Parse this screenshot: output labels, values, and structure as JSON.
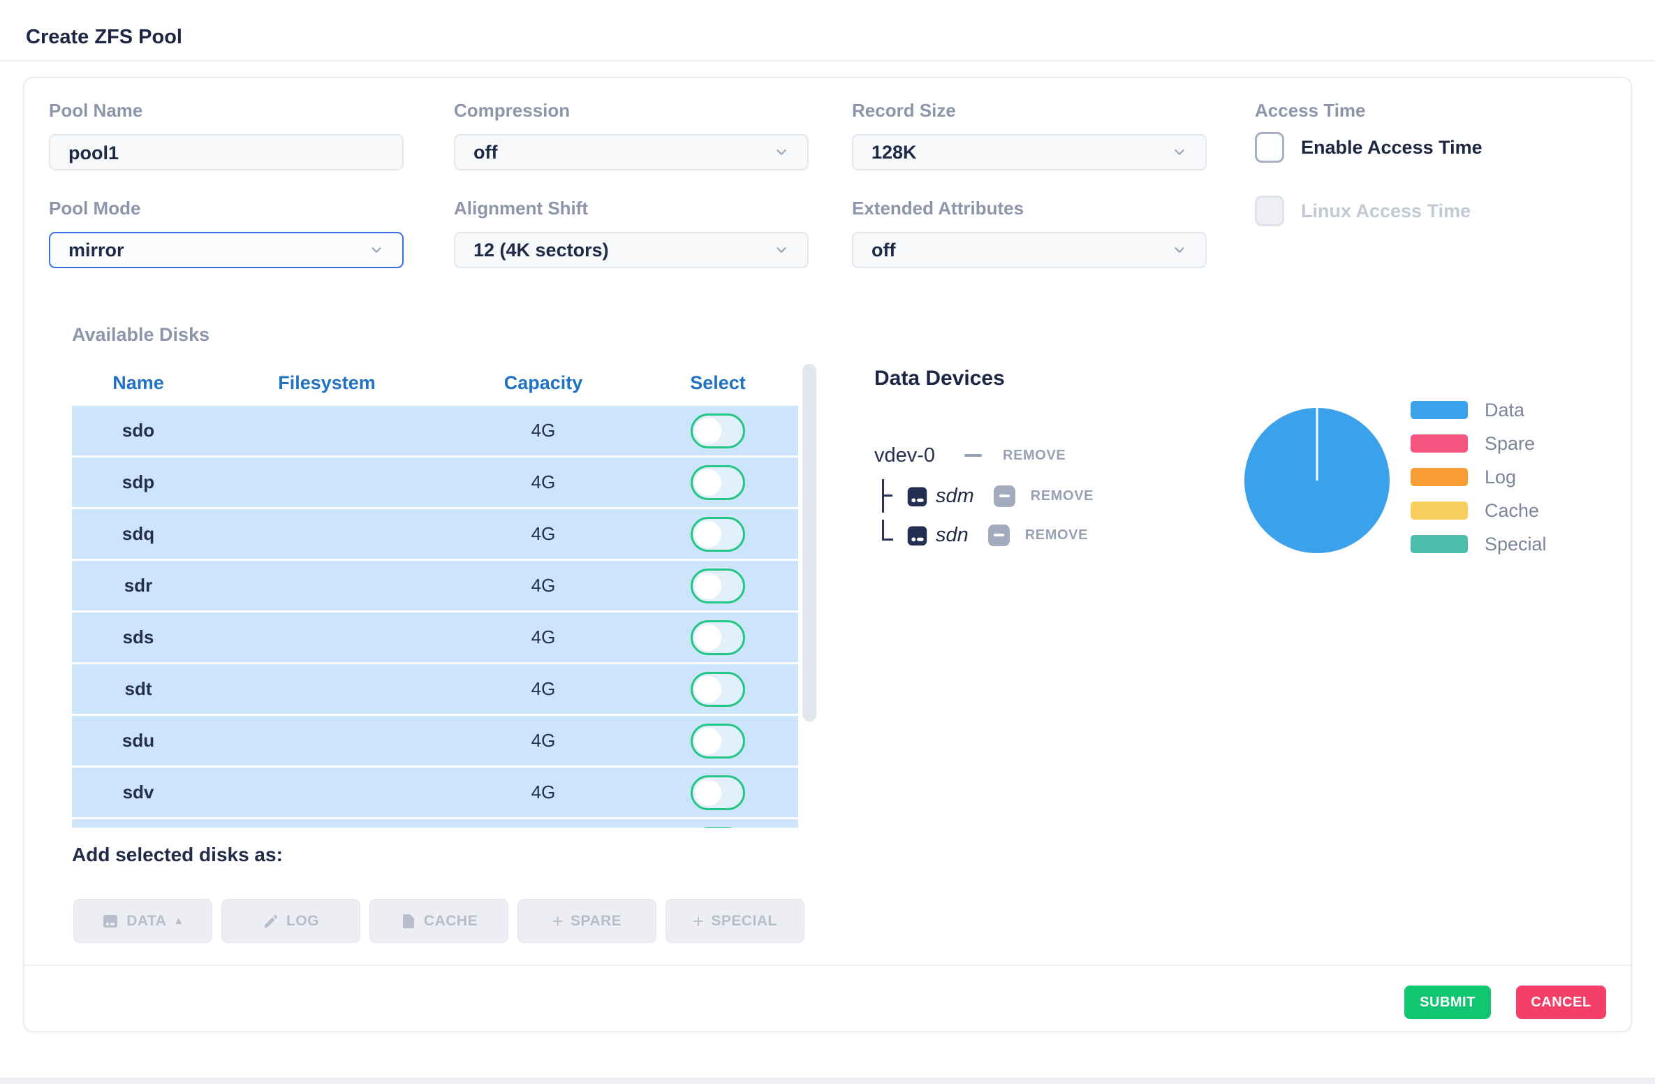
{
  "header": {
    "title": "Create ZFS Pool"
  },
  "form": {
    "pool_name": {
      "label": "Pool Name",
      "value": "pool1"
    },
    "compression": {
      "label": "Compression",
      "value": "off"
    },
    "record_size": {
      "label": "Record Size",
      "value": "128K"
    },
    "pool_mode": {
      "label": "Pool Mode",
      "value": "mirror"
    },
    "alignment_shift": {
      "label": "Alignment Shift",
      "value": "12 (4K sectors)"
    },
    "extended_attributes": {
      "label": "Extended Attributes",
      "value": "off"
    },
    "access_time": {
      "label": "Access Time",
      "enable_label": "Enable Access Time",
      "enable_checked": false,
      "linux_label": "Linux Access Time",
      "linux_checked": false,
      "linux_disabled": true
    }
  },
  "available_disks": {
    "label": "Available Disks",
    "columns": [
      "Name",
      "Filesystem",
      "Capacity",
      "Select"
    ],
    "rows": [
      {
        "name": "sdo",
        "filesystem": "",
        "capacity": "4G",
        "selected": false
      },
      {
        "name": "sdp",
        "filesystem": "",
        "capacity": "4G",
        "selected": false
      },
      {
        "name": "sdq",
        "filesystem": "",
        "capacity": "4G",
        "selected": false
      },
      {
        "name": "sdr",
        "filesystem": "",
        "capacity": "4G",
        "selected": false
      },
      {
        "name": "sds",
        "filesystem": "",
        "capacity": "4G",
        "selected": false
      },
      {
        "name": "sdt",
        "filesystem": "",
        "capacity": "4G",
        "selected": false
      },
      {
        "name": "sdu",
        "filesystem": "",
        "capacity": "4G",
        "selected": false
      },
      {
        "name": "sdv",
        "filesystem": "",
        "capacity": "4G",
        "selected": false
      }
    ],
    "partial_next_row_visible": true
  },
  "add_as": {
    "label": "Add selected disks as:",
    "buttons": [
      "DATA",
      "LOG",
      "CACHE",
      "SPARE",
      "SPECIAL"
    ],
    "disabled": true
  },
  "data_devices": {
    "title": "Data Devices",
    "vdevs": [
      {
        "name": "vdev-0",
        "remove_label": "REMOVE",
        "disks": [
          {
            "name": "sdm",
            "remove_label": "REMOVE"
          },
          {
            "name": "sdn",
            "remove_label": "REMOVE"
          }
        ]
      }
    ]
  },
  "chart_data": {
    "type": "pie",
    "labels": [
      "Data",
      "Spare",
      "Log",
      "Cache",
      "Special"
    ],
    "values": [
      100,
      0,
      0,
      0,
      0
    ],
    "unit": "percent",
    "colors": [
      "#3ba1ea",
      "#f4547e",
      "#f79d33",
      "#f8cf5f",
      "#4cbcab"
    ],
    "legend_position": "right",
    "title": ""
  },
  "footer": {
    "submit_label": "SUBMIT",
    "cancel_label": "CANCEL"
  },
  "colors": {
    "table_header_blue": "#2272c3",
    "row_blue": "#cde5fa",
    "toggle_green": "#25c685",
    "focus_border_blue": "#3a6fe8",
    "submit_green": "#12c671",
    "cancel_pink": "#f43f68",
    "pie_data_blue": "#3ba1ea"
  }
}
